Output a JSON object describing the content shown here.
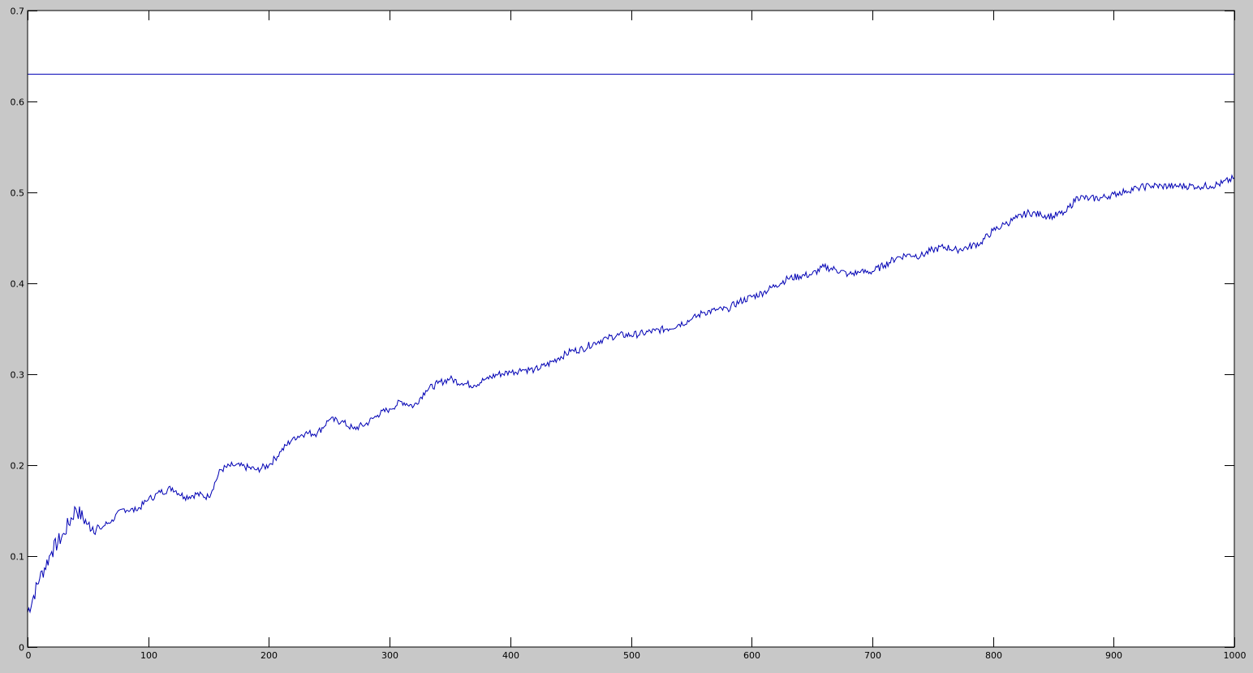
{
  "chart_data": {
    "type": "line",
    "title": "",
    "xlabel": "",
    "ylabel": "",
    "xlim": [
      0,
      1000
    ],
    "ylim": [
      0,
      0.7
    ],
    "xticks": [
      0,
      100,
      200,
      300,
      400,
      500,
      600,
      700,
      800,
      900,
      1000
    ],
    "xtick_labels": [
      "0",
      "100",
      "200",
      "300",
      "400",
      "500",
      "600",
      "700",
      "800",
      "900",
      "1000"
    ],
    "yticks": [
      0,
      0.1,
      0.2,
      0.3,
      0.4,
      0.5,
      0.6,
      0.7
    ],
    "ytick_labels": [
      "0",
      "0.1",
      "0.2",
      "0.3",
      "0.4",
      "0.5",
      "0.6",
      "0.7"
    ],
    "grid": false,
    "line_color": "#0000b4",
    "background_color": "#c8c8c8",
    "axes_color": "#ffffff",
    "series": [
      {
        "x": [
          0,
          10,
          20,
          30,
          40,
          50,
          60,
          70,
          80,
          90,
          100,
          110,
          120,
          130,
          140,
          150,
          160,
          170,
          180,
          190,
          200,
          210,
          220,
          230,
          240,
          250,
          260,
          270,
          280,
          290,
          300,
          310,
          320,
          330,
          340,
          350,
          360,
          370,
          380,
          390,
          400,
          410,
          420,
          430,
          440,
          450,
          460,
          470,
          480,
          490,
          500,
          510,
          520,
          530,
          540,
          550,
          560,
          570,
          580,
          590,
          600,
          610,
          620,
          630,
          640,
          650,
          660,
          670,
          680,
          690,
          700,
          710,
          720,
          730,
          740,
          750,
          760,
          770,
          780,
          790,
          800,
          810,
          820,
          830,
          840,
          850,
          860,
          870,
          880,
          890,
          900,
          910,
          920,
          930,
          940,
          950,
          960,
          970,
          980,
          990,
          1000
        ],
        "y": [
          0.038,
          0.075,
          0.105,
          0.125,
          0.152,
          0.135,
          0.13,
          0.14,
          0.152,
          0.15,
          0.162,
          0.17,
          0.175,
          0.165,
          0.168,
          0.165,
          0.195,
          0.2,
          0.198,
          0.195,
          0.2,
          0.215,
          0.23,
          0.235,
          0.235,
          0.25,
          0.248,
          0.24,
          0.245,
          0.255,
          0.262,
          0.27,
          0.265,
          0.282,
          0.29,
          0.295,
          0.29,
          0.288,
          0.295,
          0.3,
          0.302,
          0.305,
          0.305,
          0.31,
          0.318,
          0.325,
          0.328,
          0.335,
          0.34,
          0.343,
          0.343,
          0.345,
          0.348,
          0.35,
          0.355,
          0.36,
          0.368,
          0.37,
          0.372,
          0.38,
          0.385,
          0.39,
          0.398,
          0.405,
          0.408,
          0.41,
          0.418,
          0.415,
          0.41,
          0.412,
          0.413,
          0.42,
          0.428,
          0.432,
          0.43,
          0.437,
          0.44,
          0.437,
          0.44,
          0.445,
          0.458,
          0.465,
          0.472,
          0.478,
          0.475,
          0.474,
          0.478,
          0.495,
          0.493,
          0.494,
          0.498,
          0.502,
          0.505,
          0.507,
          0.507,
          0.507,
          0.507,
          0.507,
          0.507,
          0.51,
          0.516
        ]
      },
      {
        "x": [
          0,
          1000
        ],
        "y": [
          0.63,
          0.63
        ]
      }
    ]
  }
}
